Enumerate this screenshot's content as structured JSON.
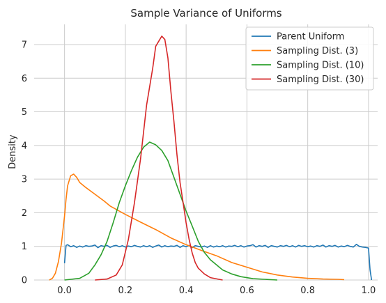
{
  "chart_data": {
    "type": "line",
    "title": "Sample Variance of Uniforms",
    "xlabel": "",
    "ylabel": "Density",
    "xlim": [
      -0.1,
      1.03
    ],
    "ylim": [
      0,
      7.6
    ],
    "xticks": [
      0.0,
      0.2,
      0.4,
      0.6,
      0.8,
      1.0
    ],
    "xtick_labels": [
      "0.0",
      "0.2",
      "0.4",
      "0.6",
      "0.8",
      "1.0"
    ],
    "yticks": [
      0,
      1,
      2,
      3,
      4,
      5,
      6,
      7
    ],
    "ytick_labels": [
      "0",
      "1",
      "2",
      "3",
      "4",
      "5",
      "6",
      "7"
    ],
    "grid": true,
    "legend_position": "top-right",
    "series": [
      {
        "name": "Parent Uniform",
        "color": "#1f77b4",
        "points": [
          [
            0.0,
            0.5
          ],
          [
            0.005,
            1.03
          ],
          [
            0.01,
            1.05
          ],
          [
            0.02,
            0.99
          ],
          [
            0.03,
            1.02
          ],
          [
            0.04,
            0.97
          ],
          [
            0.05,
            1.01
          ],
          [
            0.06,
            0.98
          ],
          [
            0.07,
            1.02
          ],
          [
            0.08,
            1.0
          ],
          [
            0.09,
            1.01
          ],
          [
            0.1,
            1.04
          ],
          [
            0.11,
            0.96
          ],
          [
            0.12,
            1.02
          ],
          [
            0.13,
            1.0
          ],
          [
            0.14,
            1.03
          ],
          [
            0.15,
            0.97
          ],
          [
            0.16,
            1.01
          ],
          [
            0.17,
            1.03
          ],
          [
            0.18,
            0.99
          ],
          [
            0.19,
            1.02
          ],
          [
            0.2,
            0.98
          ],
          [
            0.21,
            1.01
          ],
          [
            0.22,
            0.99
          ],
          [
            0.23,
            1.03
          ],
          [
            0.24,
            1.0
          ],
          [
            0.25,
            0.98
          ],
          [
            0.26,
            1.02
          ],
          [
            0.27,
            0.99
          ],
          [
            0.28,
            1.02
          ],
          [
            0.29,
            0.97
          ],
          [
            0.3,
            1.01
          ],
          [
            0.31,
            1.04
          ],
          [
            0.32,
            0.98
          ],
          [
            0.33,
            1.02
          ],
          [
            0.34,
            0.99
          ],
          [
            0.35,
            1.01
          ],
          [
            0.36,
            1.0
          ],
          [
            0.37,
            1.03
          ],
          [
            0.38,
            0.97
          ],
          [
            0.39,
            1.02
          ],
          [
            0.4,
            0.99
          ],
          [
            0.41,
            1.03
          ],
          [
            0.42,
            0.96
          ],
          [
            0.43,
            1.02
          ],
          [
            0.44,
            1.0
          ],
          [
            0.45,
            0.98
          ],
          [
            0.46,
            1.01
          ],
          [
            0.47,
            0.97
          ],
          [
            0.48,
            1.02
          ],
          [
            0.49,
            0.98
          ],
          [
            0.5,
            1.01
          ],
          [
            0.51,
            0.99
          ],
          [
            0.52,
            1.02
          ],
          [
            0.53,
            0.98
          ],
          [
            0.54,
            1.01
          ],
          [
            0.55,
            1.0
          ],
          [
            0.56,
            1.03
          ],
          [
            0.57,
            0.99
          ],
          [
            0.58,
            1.02
          ],
          [
            0.59,
            0.98
          ],
          [
            0.6,
            1.01
          ],
          [
            0.61,
            1.02
          ],
          [
            0.62,
            1.05
          ],
          [
            0.63,
            0.98
          ],
          [
            0.64,
            1.02
          ],
          [
            0.65,
            1.0
          ],
          [
            0.66,
            1.03
          ],
          [
            0.67,
            0.97
          ],
          [
            0.68,
            1.02
          ],
          [
            0.69,
            1.0
          ],
          [
            0.7,
            0.98
          ],
          [
            0.71,
            1.02
          ],
          [
            0.72,
            1.0
          ],
          [
            0.73,
            1.03
          ],
          [
            0.74,
            0.99
          ],
          [
            0.75,
            1.02
          ],
          [
            0.76,
            0.98
          ],
          [
            0.77,
            1.03
          ],
          [
            0.78,
            1.0
          ],
          [
            0.79,
            1.02
          ],
          [
            0.8,
            0.99
          ],
          [
            0.81,
            1.01
          ],
          [
            0.82,
            0.98
          ],
          [
            0.83,
            1.02
          ],
          [
            0.84,
            1.0
          ],
          [
            0.85,
            1.04
          ],
          [
            0.86,
            0.98
          ],
          [
            0.87,
            1.02
          ],
          [
            0.88,
            1.0
          ],
          [
            0.89,
            1.03
          ],
          [
            0.9,
            0.98
          ],
          [
            0.91,
            1.01
          ],
          [
            0.92,
            0.99
          ],
          [
            0.93,
            1.03
          ],
          [
            0.94,
            1.0
          ],
          [
            0.95,
            0.98
          ],
          [
            0.96,
            1.06
          ],
          [
            0.97,
            1.0
          ],
          [
            0.98,
            0.98
          ],
          [
            0.99,
            0.97
          ],
          [
            1.0,
            0.95
          ],
          [
            1.005,
            0.3
          ],
          [
            1.01,
            0.0
          ]
        ]
      },
      {
        "name": "Sampling Dist. (3)",
        "color": "#ff7f0e",
        "points": [
          [
            -0.05,
            0.0
          ],
          [
            -0.04,
            0.05
          ],
          [
            -0.03,
            0.2
          ],
          [
            -0.02,
            0.55
          ],
          [
            -0.01,
            1.1
          ],
          [
            0.0,
            1.9
          ],
          [
            0.005,
            2.4
          ],
          [
            0.01,
            2.8
          ],
          [
            0.02,
            3.1
          ],
          [
            0.03,
            3.15
          ],
          [
            0.04,
            3.05
          ],
          [
            0.05,
            2.9
          ],
          [
            0.07,
            2.75
          ],
          [
            0.1,
            2.55
          ],
          [
            0.13,
            2.35
          ],
          [
            0.15,
            2.2
          ],
          [
            0.2,
            1.95
          ],
          [
            0.25,
            1.72
          ],
          [
            0.3,
            1.5
          ],
          [
            0.35,
            1.25
          ],
          [
            0.4,
            1.05
          ],
          [
            0.45,
            0.88
          ],
          [
            0.5,
            0.72
          ],
          [
            0.55,
            0.52
          ],
          [
            0.6,
            0.38
          ],
          [
            0.65,
            0.24
          ],
          [
            0.7,
            0.15
          ],
          [
            0.75,
            0.09
          ],
          [
            0.8,
            0.05
          ],
          [
            0.85,
            0.03
          ],
          [
            0.9,
            0.02
          ],
          [
            0.92,
            0.01
          ]
        ]
      },
      {
        "name": "Sampling Dist. (10)",
        "color": "#2ca02c",
        "points": [
          [
            0.0,
            0.0
          ],
          [
            0.05,
            0.05
          ],
          [
            0.08,
            0.2
          ],
          [
            0.1,
            0.45
          ],
          [
            0.12,
            0.75
          ],
          [
            0.14,
            1.15
          ],
          [
            0.16,
            1.7
          ],
          [
            0.18,
            2.3
          ],
          [
            0.2,
            2.8
          ],
          [
            0.22,
            3.25
          ],
          [
            0.24,
            3.65
          ],
          [
            0.26,
            3.95
          ],
          [
            0.28,
            4.1
          ],
          [
            0.3,
            4.02
          ],
          [
            0.32,
            3.85
          ],
          [
            0.34,
            3.55
          ],
          [
            0.36,
            3.05
          ],
          [
            0.38,
            2.55
          ],
          [
            0.4,
            2.05
          ],
          [
            0.42,
            1.6
          ],
          [
            0.44,
            1.15
          ],
          [
            0.46,
            0.82
          ],
          [
            0.48,
            0.6
          ],
          [
            0.5,
            0.45
          ],
          [
            0.52,
            0.3
          ],
          [
            0.55,
            0.18
          ],
          [
            0.58,
            0.1
          ],
          [
            0.62,
            0.04
          ],
          [
            0.66,
            0.02
          ],
          [
            0.7,
            0.0
          ]
        ]
      },
      {
        "name": "Sampling Dist. (30)",
        "color": "#d62728",
        "points": [
          [
            0.1,
            0.0
          ],
          [
            0.14,
            0.03
          ],
          [
            0.17,
            0.15
          ],
          [
            0.19,
            0.45
          ],
          [
            0.21,
            1.2
          ],
          [
            0.23,
            2.3
          ],
          [
            0.25,
            3.6
          ],
          [
            0.27,
            5.2
          ],
          [
            0.29,
            6.3
          ],
          [
            0.3,
            6.95
          ],
          [
            0.31,
            7.1
          ],
          [
            0.32,
            7.25
          ],
          [
            0.33,
            7.15
          ],
          [
            0.34,
            6.6
          ],
          [
            0.35,
            5.6
          ],
          [
            0.36,
            4.7
          ],
          [
            0.37,
            3.7
          ],
          [
            0.38,
            2.9
          ],
          [
            0.39,
            2.3
          ],
          [
            0.4,
            1.7
          ],
          [
            0.41,
            1.2
          ],
          [
            0.42,
            0.8
          ],
          [
            0.43,
            0.52
          ],
          [
            0.44,
            0.35
          ],
          [
            0.46,
            0.18
          ],
          [
            0.48,
            0.07
          ],
          [
            0.52,
            0.0
          ]
        ]
      }
    ]
  }
}
